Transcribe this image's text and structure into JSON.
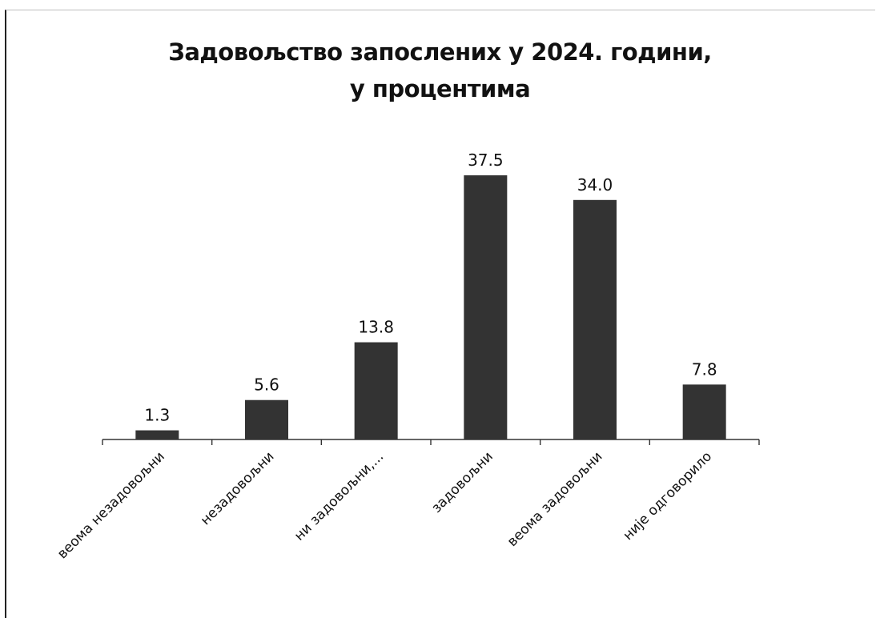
{
  "chart_data": {
    "type": "bar",
    "title_lines": [
      "Задовољство запослених у 2024. години,",
      "у процентима"
    ],
    "categories": [
      "веома незадовољни",
      "незадовољни",
      "ни задовољни,...",
      "задовољни",
      "веома задовољни",
      "није одговорило"
    ],
    "values": [
      1.3,
      5.6,
      13.8,
      37.5,
      34.0,
      7.8
    ],
    "value_labels": [
      "1.3",
      "5.6",
      "13.8",
      "37.5",
      "34.0",
      "7.8"
    ],
    "ylim": [
      0,
      37.5
    ],
    "grid": false,
    "legend": "none",
    "xlabel": "",
    "ylabel": "",
    "bar_color": "#333333"
  }
}
